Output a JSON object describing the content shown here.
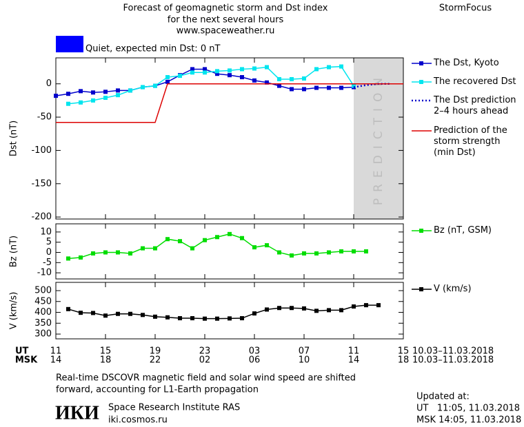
{
  "header": {
    "title_lines": [
      "Forecast of geomagnetic storm and Dst index",
      "for the next several hours",
      "www.spaceweather.ru"
    ],
    "brand": "StormFocus",
    "status": {
      "text": "Quiet, expected min Dst: 0 nT",
      "color": "#0000ff"
    }
  },
  "chart_data": [
    {
      "type": "line",
      "y_label": "Dst (nT)",
      "xlim": [
        0,
        28
      ],
      "ylim": [
        -203,
        39
      ],
      "yticks": [
        0,
        -50,
        -100,
        -150,
        -200
      ],
      "prediction_zone": {
        "x": [
          24,
          28
        ],
        "label": "PREDICTION"
      },
      "series": [
        {
          "name": "The Dst, Kyoto",
          "color": "#0000cc",
          "marker": "square",
          "x": [
            0,
            1,
            2,
            3,
            4,
            5,
            6,
            7,
            8,
            9,
            10,
            11,
            12,
            13,
            14,
            15,
            16,
            17,
            18,
            19,
            20,
            21,
            22,
            23,
            24
          ],
          "values": [
            -18,
            -15,
            -11,
            -13,
            -12,
            -10,
            -10,
            -5,
            -3,
            3,
            13,
            22,
            22,
            15,
            13,
            10,
            5,
            2,
            -3,
            -8,
            -8,
            -6,
            -6,
            -6,
            -5
          ]
        },
        {
          "name": "The recovered Dst",
          "color": "#00e5ee",
          "marker": "square",
          "x": [
            1,
            2,
            3,
            4,
            5,
            6,
            7,
            8,
            9,
            10,
            11,
            12,
            13,
            14,
            15,
            16,
            17,
            18,
            19,
            20,
            21,
            22,
            23,
            24
          ],
          "values": [
            -30,
            -28,
            -25,
            -21,
            -17,
            -10,
            -5,
            -3,
            10,
            12,
            17,
            17,
            19,
            20,
            22,
            23,
            25,
            7,
            7,
            8,
            22,
            25,
            26,
            -3
          ]
        },
        {
          "name": "The Dst prediction\n2–4 hours ahead",
          "color": "#0000cc",
          "dash": true,
          "x": [
            24,
            25,
            26,
            27
          ],
          "values": [
            -5,
            -2,
            0,
            0
          ]
        },
        {
          "name": "Prediction of the\nstorm strength\n(min Dst)",
          "color": "#dd0000",
          "x": [
            0,
            8,
            9,
            28
          ],
          "values": [
            -58,
            -58,
            0,
            0
          ]
        }
      ]
    },
    {
      "type": "line",
      "y_label": "Bz (nT)",
      "xlim": [
        0,
        28
      ],
      "ylim": [
        -13,
        14
      ],
      "yticks": [
        10,
        5,
        0,
        -5,
        -10
      ],
      "series": [
        {
          "name": "Bz (nT, GSM)",
          "color": "#00dd00",
          "marker": "square",
          "x": [
            1,
            2,
            3,
            4,
            5,
            6,
            7,
            8,
            9,
            10,
            11,
            12,
            13,
            14,
            15,
            16,
            17,
            18,
            19,
            20,
            21,
            22,
            23,
            24,
            25
          ],
          "values": [
            -3,
            -2.5,
            -0.5,
            0,
            0,
            -0.5,
            2,
            2,
            6.5,
            5.5,
            2,
            6,
            7.5,
            9,
            7,
            2.5,
            3.5,
            0,
            -1.5,
            -0.5,
            -0.5,
            0,
            0.5,
            0.5,
            0.5
          ]
        }
      ]
    },
    {
      "type": "line",
      "y_label": "V (km/s)",
      "xlim": [
        0,
        28
      ],
      "ylim": [
        278,
        538
      ],
      "yticks": [
        500,
        450,
        400,
        350,
        300
      ],
      "xticks": [
        {
          "value": 0,
          "label": "11"
        },
        {
          "value": 4,
          "label": "15"
        },
        {
          "value": 8,
          "label": "19"
        },
        {
          "value": 12,
          "label": "23"
        },
        {
          "value": 16,
          "label": "03"
        },
        {
          "value": 20,
          "label": "07"
        },
        {
          "value": 24,
          "label": "11"
        },
        {
          "value": 28,
          "label": "15"
        }
      ],
      "xtick_labels_msk": [
        "14",
        "18",
        "22",
        "02",
        "06",
        "10",
        "14",
        "18"
      ],
      "x_row_labels": [
        "UT",
        "MSK"
      ],
      "date_range": [
        "10.03–11.03.2018",
        "10.03–11.03.2018"
      ],
      "series": [
        {
          "name": "V (km/s)",
          "color": "#000000",
          "marker": "square",
          "x": [
            1,
            2,
            3,
            4,
            5,
            6,
            7,
            8,
            9,
            10,
            11,
            12,
            13,
            14,
            15,
            16,
            17,
            18,
            19,
            20,
            21,
            22,
            23,
            24,
            25,
            26
          ],
          "values": [
            415,
            398,
            397,
            385,
            393,
            393,
            388,
            380,
            377,
            373,
            373,
            371,
            371,
            372,
            373,
            395,
            413,
            420,
            420,
            418,
            407,
            410,
            410,
            427,
            433,
            433
          ]
        }
      ]
    }
  ],
  "footer": {
    "note_lines": [
      "Real-time DSCOVR magnetic field and solar wind speed are shifted",
      "forward, accounting for L1-Earth propagation"
    ],
    "logo": "ИКИ",
    "institute": "Space Research Institute RAS",
    "site": "iki.cosmos.ru",
    "updated": [
      "Updated at:",
      "UT   11:05, 11.03.2018",
      "MSK 14:05, 11.03.2018"
    ]
  }
}
